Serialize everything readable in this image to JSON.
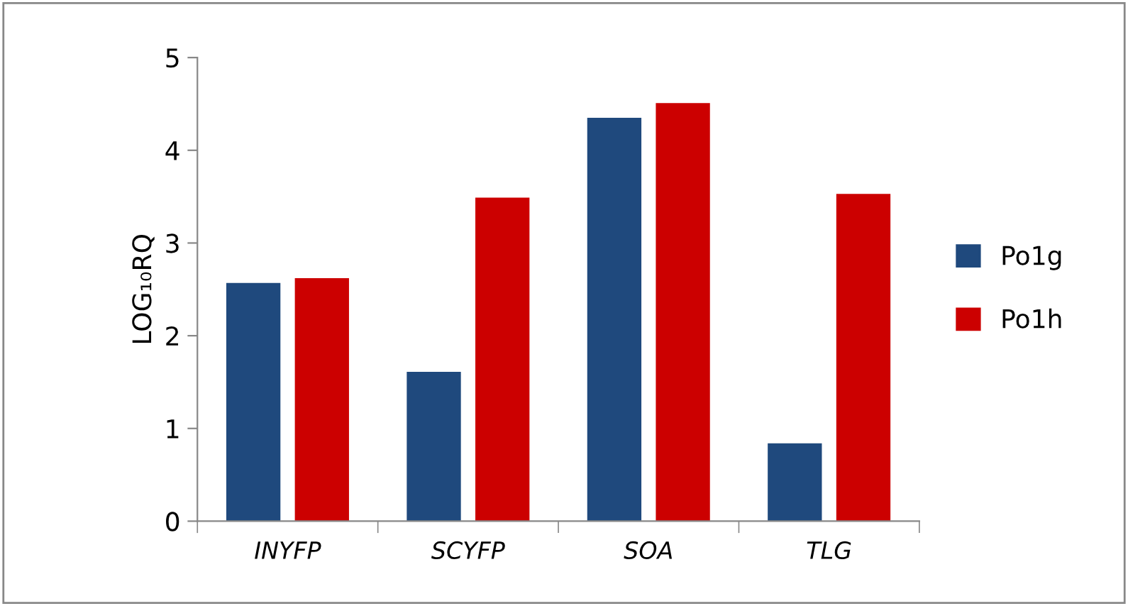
{
  "chart_data": {
    "type": "bar",
    "ylabel": "LOG₁₀RQ",
    "categories": [
      "INYFP",
      "SCYFP",
      "SOA",
      "TLG"
    ],
    "series": [
      {
        "name": "Po1g",
        "color": "#1f497d",
        "values": [
          2.57,
          1.61,
          4.35,
          0.84
        ]
      },
      {
        "name": "Po1h",
        "color": "#cc0000",
        "values": [
          2.62,
          3.49,
          4.51,
          3.53
        ]
      }
    ],
    "ylim": [
      0,
      5
    ],
    "yticks": [
      0,
      1,
      2,
      3,
      4,
      5
    ],
    "grid": false,
    "legend": "right"
  }
}
